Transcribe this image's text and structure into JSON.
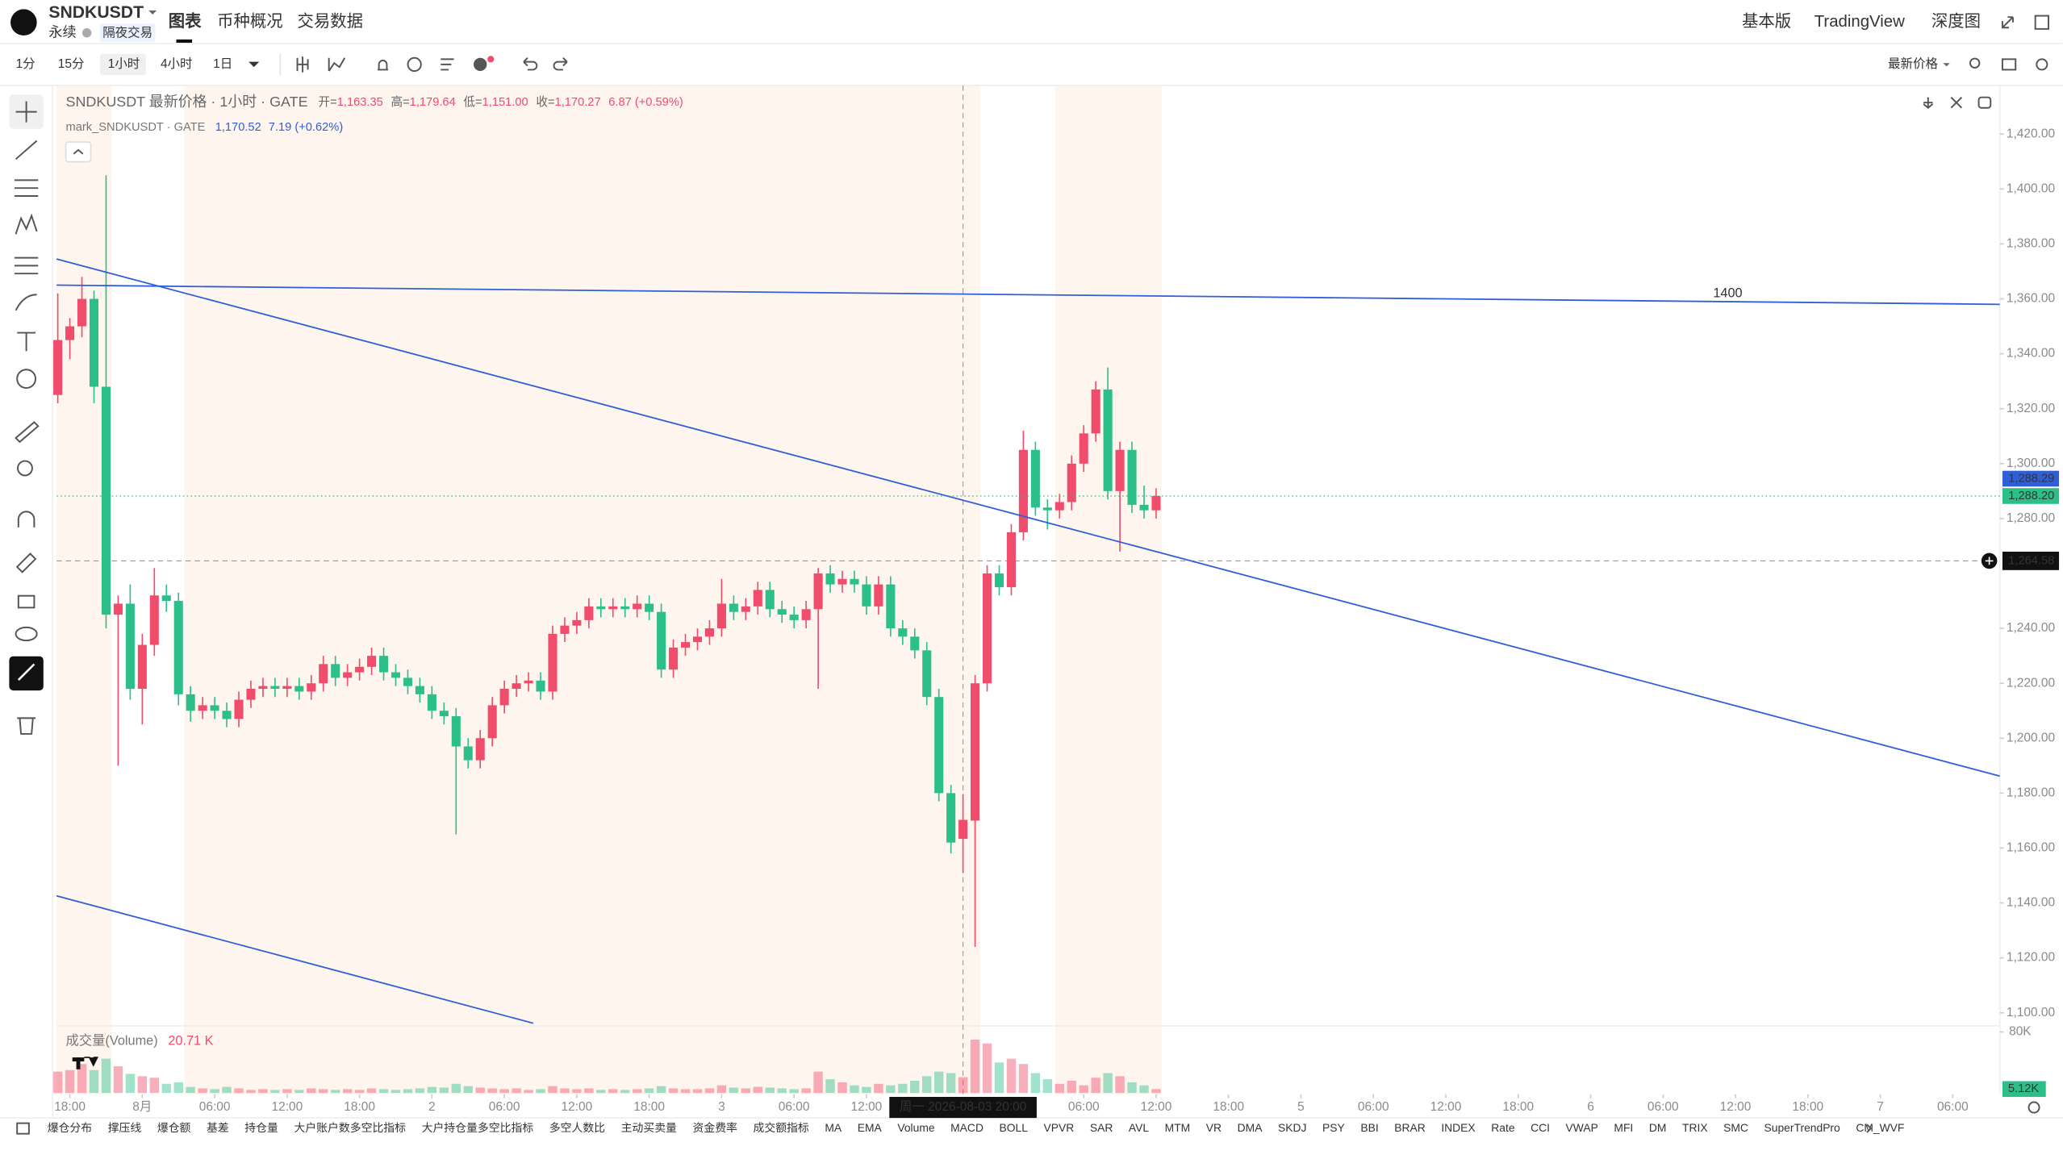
{
  "header": {
    "symbol": "SNDKUSDT",
    "contract": "永续",
    "badge": "隔夜交易",
    "tabs": [
      "图表",
      "币种概况",
      "交易数据"
    ],
    "right_tabs": [
      "基本版",
      "TradingView",
      "深度图"
    ]
  },
  "toolbar": {
    "intervals": [
      "1分",
      "15分",
      "1小时",
      "4小时",
      "1日"
    ],
    "price_source": "最新价格"
  },
  "legend": {
    "title": "SNDKUSDT 最新价格 · 1小时 · GATE",
    "open_key": "开=",
    "open": "1,163.35",
    "high_key": "高=",
    "high": "1,179.64",
    "low_key": "低=",
    "low": "1,151.00",
    "close_key": "收=",
    "close": "1,170.27",
    "change": "6.87 (+0.59%)",
    "mark_title": "mark_SNDKUSDT · GATE",
    "mark_price": "1,170.52",
    "mark_change": "7.19 (+0.62%)",
    "volume_title": "成交量(Volume)",
    "volume_value": "20.71 K"
  },
  "indicators": [
    "爆仓分布",
    "撑压线",
    "爆仓额",
    "基差",
    "持仓量",
    "大户账户数多空比指标",
    "大户持仓量多空比指标",
    "多空人数比",
    "主动买卖量",
    "资金费率",
    "成交额指标",
    "MA",
    "EMA",
    "Volume",
    "MACD",
    "BOLL",
    "VPVR",
    "SAR",
    "AVL",
    "MTM",
    "VR",
    "DMA",
    "SKDJ",
    "PSY",
    "BBI",
    "BRAR",
    "INDEX",
    "Rate",
    "CCI",
    "VWAP",
    "MFI",
    "DM",
    "TRIX",
    "SMC",
    "SuperTrendPro",
    "CM_WVF"
  ],
  "chart_data": {
    "type": "candlestick",
    "up_color": "#ef4d6b",
    "down_color": "#2cbf8a",
    "line_color": "#2f5fd8",
    "xlim": [
      -0.1,
      160.9
    ],
    "ylim": [
      1096.2,
      1437.7
    ],
    "vlim": [
      0,
      88
    ],
    "yticks": [
      {
        "value": 1420,
        "label": "1,420.00"
      },
      {
        "value": 1400,
        "label": "1,400.00"
      },
      {
        "value": 1380,
        "label": "1,380.00"
      },
      {
        "value": 1360,
        "label": "1,360.00"
      },
      {
        "value": 1340,
        "label": "1,340.00"
      },
      {
        "value": 1320,
        "label": "1,320.00"
      },
      {
        "value": 1300,
        "label": "1,300.00"
      },
      {
        "value": 1280,
        "label": "1,280.00"
      },
      {
        "value": 1240,
        "label": "1,240.00"
      },
      {
        "value": 1220,
        "label": "1,220.00"
      },
      {
        "value": 1200,
        "label": "1,200.00"
      },
      {
        "value": 1180,
        "label": "1,180.00"
      },
      {
        "value": 1160,
        "label": "1,160.00"
      },
      {
        "value": 1140,
        "label": "1,140.00"
      },
      {
        "value": 1120,
        "label": "1,120.00"
      },
      {
        "value": 1100,
        "label": "1,100.00"
      }
    ],
    "vticks": [
      {
        "value": 80,
        "label": "80K"
      }
    ],
    "xticks": [
      {
        "value": 1,
        "label": "18:00"
      },
      {
        "value": 7,
        "label": "8月"
      },
      {
        "value": 13,
        "label": "06:00"
      },
      {
        "value": 19,
        "label": "12:00"
      },
      {
        "value": 25,
        "label": "18:00"
      },
      {
        "value": 31,
        "label": "2"
      },
      {
        "value": 37,
        "label": "06:00"
      },
      {
        "value": 43,
        "label": "12:00"
      },
      {
        "value": 49,
        "label": "18:00"
      },
      {
        "value": 55,
        "label": "3"
      },
      {
        "value": 61,
        "label": "06:00"
      },
      {
        "value": 67,
        "label": "12:00"
      },
      {
        "value": 85,
        "label": "06:00"
      },
      {
        "value": 91,
        "label": "12:00"
      },
      {
        "value": 97,
        "label": "18:00"
      },
      {
        "value": 103,
        "label": "5"
      },
      {
        "value": 109,
        "label": "06:00"
      },
      {
        "value": 115,
        "label": "12:00"
      },
      {
        "value": 121,
        "label": "18:00"
      },
      {
        "value": 127,
        "label": "6"
      },
      {
        "value": 133,
        "label": "06:00"
      },
      {
        "value": 139,
        "label": "12:00"
      },
      {
        "value": 145,
        "label": "18:00"
      },
      {
        "value": 151,
        "label": "7"
      },
      {
        "value": 157,
        "label": "06:00"
      }
    ],
    "candles": [
      [
        1325,
        1362,
        1322,
        1345
      ],
      [
        1345,
        1353,
        1338,
        1350
      ],
      [
        1350,
        1368,
        1346,
        1360
      ],
      [
        1360,
        1363,
        1322,
        1328
      ],
      [
        1328,
        1405,
        1240,
        1245
      ],
      [
        1245,
        1252,
        1190,
        1249
      ],
      [
        1249,
        1256,
        1214,
        1218
      ],
      [
        1218,
        1238,
        1205,
        1234
      ],
      [
        1234,
        1262,
        1230,
        1252
      ],
      [
        1252,
        1256,
        1246,
        1250
      ],
      [
        1250,
        1253,
        1212,
        1216
      ],
      [
        1216,
        1219,
        1206,
        1210
      ],
      [
        1210,
        1215,
        1207,
        1212
      ],
      [
        1212,
        1215,
        1207,
        1210
      ],
      [
        1210,
        1213,
        1204,
        1207
      ],
      [
        1207,
        1217,
        1204,
        1214
      ],
      [
        1214,
        1221,
        1211,
        1218
      ],
      [
        1218,
        1222,
        1215,
        1219
      ],
      [
        1219,
        1222,
        1215,
        1218
      ],
      [
        1218,
        1222,
        1215,
        1219
      ],
      [
        1219,
        1222,
        1214,
        1217
      ],
      [
        1217,
        1223,
        1214,
        1220
      ],
      [
        1220,
        1230,
        1217,
        1227
      ],
      [
        1227,
        1230,
        1219,
        1222
      ],
      [
        1222,
        1227,
        1219,
        1224
      ],
      [
        1224,
        1229,
        1221,
        1226
      ],
      [
        1226,
        1233,
        1223,
        1230
      ],
      [
        1230,
        1233,
        1221,
        1224
      ],
      [
        1224,
        1227,
        1219,
        1222
      ],
      [
        1222,
        1225,
        1216,
        1219
      ],
      [
        1219,
        1222,
        1213,
        1216
      ],
      [
        1216,
        1219,
        1207,
        1210
      ],
      [
        1210,
        1213,
        1205,
        1208
      ],
      [
        1208,
        1211,
        1165,
        1197
      ],
      [
        1197,
        1200,
        1189,
        1192
      ],
      [
        1192,
        1203,
        1189,
        1200
      ],
      [
        1200,
        1215,
        1197,
        1212
      ],
      [
        1212,
        1221,
        1209,
        1218
      ],
      [
        1218,
        1223,
        1215,
        1220
      ],
      [
        1220,
        1224,
        1217,
        1221
      ],
      [
        1221,
        1224,
        1214,
        1217
      ],
      [
        1217,
        1241,
        1214,
        1238
      ],
      [
        1238,
        1244,
        1235,
        1241
      ],
      [
        1241,
        1246,
        1238,
        1243
      ],
      [
        1243,
        1251,
        1240,
        1248
      ],
      [
        1248,
        1251,
        1244,
        1247
      ],
      [
        1247,
        1251,
        1244,
        1248
      ],
      [
        1248,
        1251,
        1244,
        1247
      ],
      [
        1247,
        1252,
        1244,
        1249
      ],
      [
        1249,
        1252,
        1243,
        1246
      ],
      [
        1246,
        1249,
        1222,
        1225
      ],
      [
        1225,
        1236,
        1222,
        1233
      ],
      [
        1233,
        1238,
        1230,
        1235
      ],
      [
        1235,
        1240,
        1232,
        1237
      ],
      [
        1237,
        1243,
        1234,
        1240
      ],
      [
        1240,
        1258,
        1237,
        1249
      ],
      [
        1249,
        1252,
        1243,
        1246
      ],
      [
        1246,
        1251,
        1243,
        1248
      ],
      [
        1248,
        1257,
        1245,
        1254
      ],
      [
        1254,
        1257,
        1244,
        1247
      ],
      [
        1247,
        1250,
        1242,
        1245
      ],
      [
        1245,
        1248,
        1240,
        1243
      ],
      [
        1243,
        1250,
        1240,
        1247
      ],
      [
        1247,
        1262,
        1218,
        1260
      ],
      [
        1260,
        1263,
        1253,
        1256
      ],
      [
        1256,
        1261,
        1253,
        1258
      ],
      [
        1258,
        1261,
        1253,
        1256
      ],
      [
        1256,
        1259,
        1245,
        1248
      ],
      [
        1248,
        1259,
        1245,
        1256
      ],
      [
        1256,
        1259,
        1237,
        1240
      ],
      [
        1240,
        1243,
        1234,
        1237
      ],
      [
        1237,
        1240,
        1229,
        1232
      ],
      [
        1232,
        1235,
        1212,
        1215
      ],
      [
        1215,
        1218,
        1177,
        1180
      ],
      [
        1180,
        1183,
        1158,
        1162
      ],
      [
        1163.35,
        1179.64,
        1151,
        1170.27
      ],
      [
        1170,
        1223,
        1124,
        1220
      ],
      [
        1220,
        1263,
        1217,
        1260
      ],
      [
        1260,
        1263,
        1252,
        1255
      ],
      [
        1255,
        1278,
        1252,
        1275
      ],
      [
        1275,
        1312,
        1272,
        1305
      ],
      [
        1305,
        1308,
        1281,
        1284
      ],
      [
        1284,
        1287,
        1276,
        1283
      ],
      [
        1283,
        1289,
        1280,
        1286
      ],
      [
        1286,
        1303,
        1283,
        1300
      ],
      [
        1300,
        1314,
        1297,
        1311
      ],
      [
        1311,
        1330,
        1308,
        1327
      ],
      [
        1327,
        1335,
        1287,
        1290
      ],
      [
        1290,
        1308,
        1268,
        1305
      ],
      [
        1305,
        1308,
        1282,
        1285
      ],
      [
        1285,
        1292,
        1280,
        1283
      ],
      [
        1283,
        1291,
        1280,
        1288.2
      ]
    ],
    "volumes": [
      28,
      30,
      38,
      30,
      45,
      35,
      25,
      22,
      20,
      12,
      14,
      8,
      6,
      5,
      8,
      6,
      4,
      5,
      4,
      5,
      4,
      6,
      5,
      4,
      5,
      4,
      6,
      5,
      4,
      5,
      6,
      8,
      7,
      12,
      9,
      7,
      6,
      5,
      6,
      4,
      5,
      9,
      6,
      5,
      6,
      4,
      5,
      4,
      5,
      6,
      9,
      6,
      5,
      5,
      6,
      10,
      7,
      6,
      8,
      7,
      6,
      5,
      6,
      28,
      18,
      14,
      10,
      8,
      12,
      10,
      12,
      16,
      22,
      28,
      26,
      20.71,
      70,
      65,
      40,
      45,
      38,
      26,
      18,
      12,
      16,
      10,
      20,
      26,
      22,
      14,
      10,
      5.12
    ],
    "trendlines": [
      {
        "label": "1400",
        "x": [
          -0.1,
          160.9
        ],
        "y": [
          1365,
          1358
        ]
      },
      {
        "x": [
          -0.1,
          160.9
        ],
        "y": [
          1374.5,
          1186.2
        ]
      },
      {
        "x": [
          -0.1,
          39.4
        ],
        "y": [
          1142.6,
          1096.2
        ]
      }
    ],
    "last_prices": [
      {
        "value": 1288.29,
        "label": "1,288.29",
        "color": "#2f5fd8"
      },
      {
        "value": 1288.2,
        "label": "1,288.20",
        "color": "#2cbf8a"
      }
    ],
    "last_volume": {
      "value": 5.12,
      "label": "5.12K"
    },
    "crosshair": {
      "x": 75,
      "price": {
        "value": 1264.58,
        "label": "1,264.58"
      },
      "time": "周一 2026-08-03  20:00"
    }
  }
}
